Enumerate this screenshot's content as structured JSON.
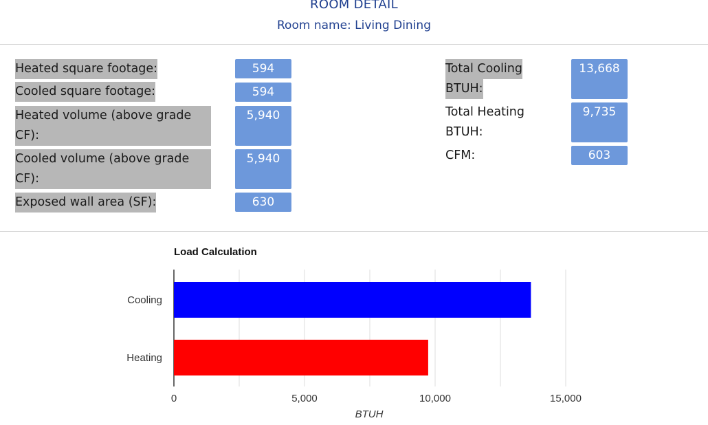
{
  "header": {
    "title": "ROOM DETAIL",
    "subtitle": "Room name: Living Dining"
  },
  "left_metrics": [
    {
      "label_lines": [
        "Heated square footage:"
      ],
      "value": "594"
    },
    {
      "label_lines": [
        "Cooled square footage:"
      ],
      "value": "594"
    },
    {
      "label_lines": [
        "Heated volume (above grade",
        "CF):"
      ],
      "value": "5,940"
    },
    {
      "label_lines": [
        "Cooled volume (above grade",
        "CF):"
      ],
      "value": "5,940"
    },
    {
      "label_lines": [
        "Exposed wall area (SF):"
      ],
      "value": "630"
    }
  ],
  "right_metrics": [
    {
      "label_lines": [
        "Total Cooling",
        "BTUH:"
      ],
      "value": "13,668"
    },
    {
      "label_lines": [
        "Total Heating",
        "BTUH:"
      ],
      "value": "9,735"
    },
    {
      "label_lines": [
        "CFM:"
      ],
      "value": "603"
    }
  ],
  "colors": {
    "title": "#1f3f8f",
    "value_box": "#6d98db",
    "label_highlight": "#b7b7b7",
    "cooling_bar": "#0000ff",
    "heating_bar": "#ff0000"
  },
  "chart_data": {
    "type": "bar",
    "orientation": "horizontal",
    "title": "Load Calculation",
    "categories": [
      "Cooling",
      "Heating"
    ],
    "values": [
      13668,
      9735
    ],
    "bar_colors": [
      "#0000ff",
      "#ff0000"
    ],
    "xlabel": "BTUH",
    "ylabel": "",
    "xlim": [
      0,
      18000
    ],
    "xticks": [
      0,
      5000,
      10000,
      15000
    ],
    "xtick_labels": [
      "0",
      "5,000",
      "10,000",
      "15,000"
    ],
    "grid": true,
    "legend": "none"
  }
}
